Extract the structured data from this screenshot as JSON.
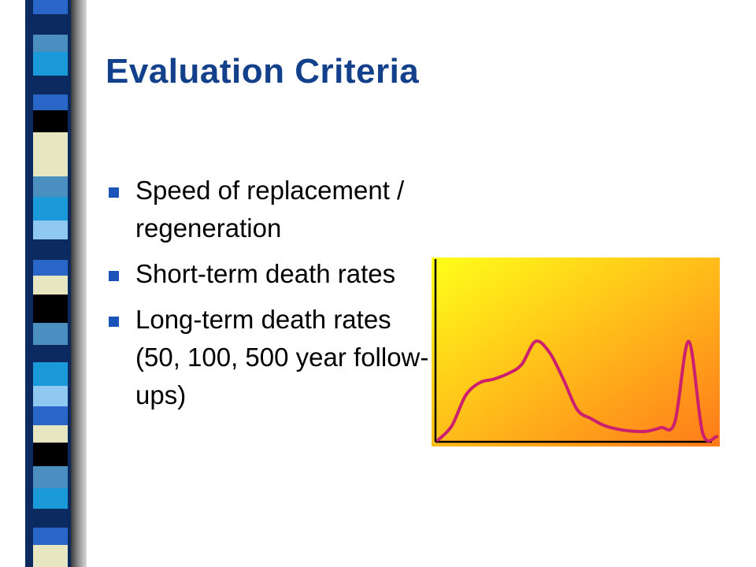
{
  "slide": {
    "title": "Evaluation Criteria",
    "bullets": [
      "Speed of replacement / regeneration",
      "Short-term death rates",
      "Long-term death rates (50, 100, 500 year follow-ups)"
    ]
  },
  "colors": {
    "title": "#12408a",
    "bullet_marker": "#1b54b8",
    "curve": "#cc1f6e",
    "chart_gradient_start": "#ffff19",
    "chart_gradient_end": "#ff7a1a",
    "stripe_palette": [
      "#0a2a60",
      "#2a66c8",
      "#4a8fc0",
      "#e6e6c0",
      "#60a8d8",
      "#8fc8f0",
      "#1a9ad8",
      "#000000",
      "#ffffff"
    ]
  },
  "decoration": {
    "stripe_column": "left-edge striped bar"
  },
  "chart_data": {
    "type": "line",
    "title": "",
    "xlabel": "",
    "ylabel": "",
    "grid": false,
    "legend": "none",
    "series": [
      {
        "x": [
          0,
          5,
          10,
          15,
          20,
          25,
          30,
          35,
          40,
          45,
          50,
          55,
          60,
          65,
          70,
          75,
          80,
          85,
          90,
          95,
          100
        ],
        "values": [
          0,
          8,
          25,
          32,
          34,
          37,
          42,
          55,
          49,
          34,
          17,
          12,
          8,
          6,
          5,
          5,
          7,
          10,
          55,
          4,
          2
        ]
      }
    ],
    "xlim": [
      0,
      100
    ],
    "ylim": [
      0,
      100
    ]
  }
}
